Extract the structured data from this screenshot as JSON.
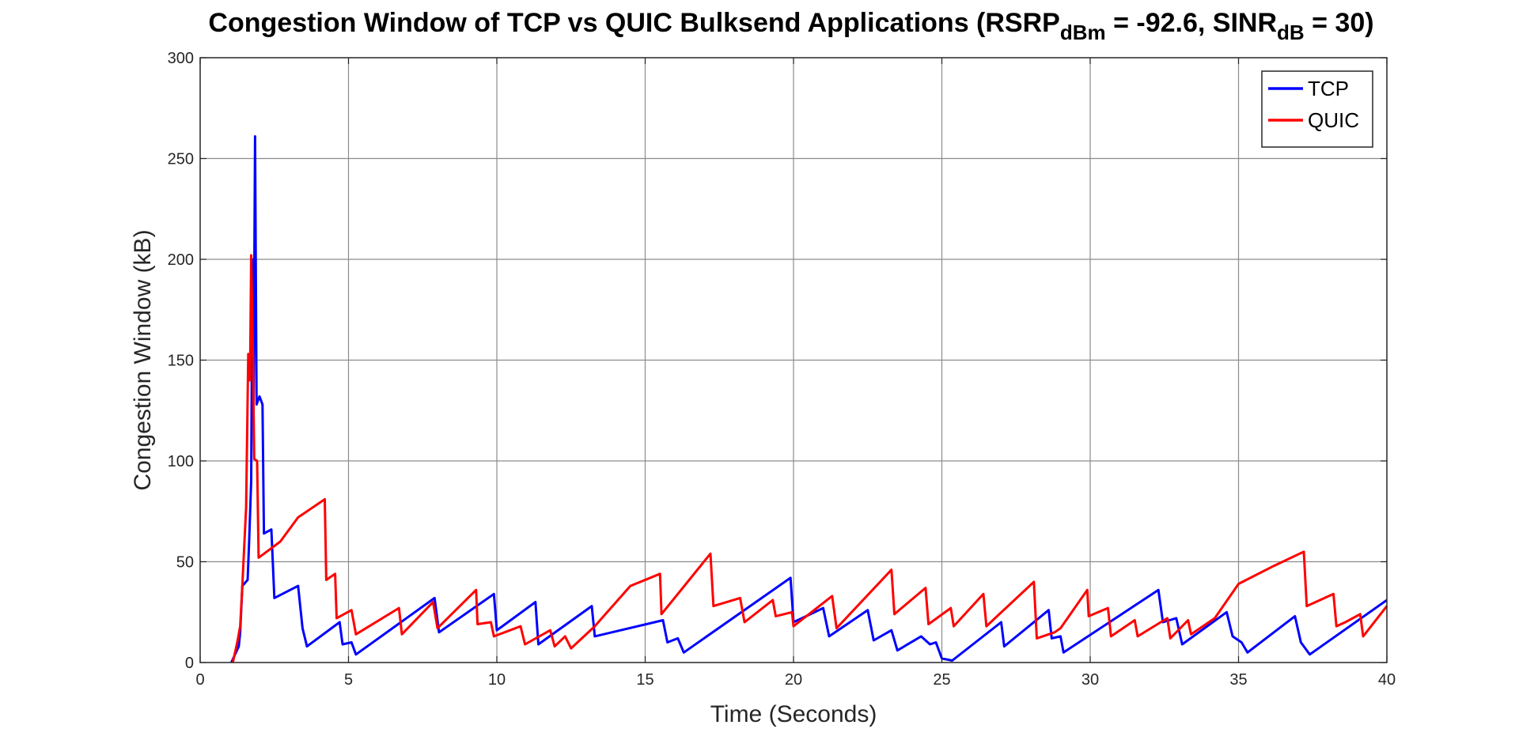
{
  "chart_data": {
    "type": "line",
    "title": {
      "prefix": "Congestion Window of TCP vs QUIC Bulksend Applications (RSRP",
      "sub1": "dBm",
      "middle": " = -92.6, SINR",
      "sub2": "dB",
      "suffix": " = 30)"
    },
    "xlabel": "Time (Seconds)",
    "ylabel": "Congestion Window (kB)",
    "xlim": [
      0,
      40
    ],
    "ylim": [
      0,
      300
    ],
    "xticks": [
      0,
      5,
      10,
      15,
      20,
      25,
      30,
      35,
      40
    ],
    "yticks": [
      0,
      50,
      100,
      150,
      200,
      250,
      300
    ],
    "grid": true,
    "legend_position": "top-right",
    "series": [
      {
        "name": "TCP",
        "color": "#0000ff",
        "points": [
          [
            1.05,
            0
          ],
          [
            1.3,
            8
          ],
          [
            1.35,
            15
          ],
          [
            1.42,
            38
          ],
          [
            1.6,
            41
          ],
          [
            1.65,
            60
          ],
          [
            1.72,
            90
          ],
          [
            1.76,
            200
          ],
          [
            1.8,
            130
          ],
          [
            1.85,
            261
          ],
          [
            1.9,
            128
          ],
          [
            2.0,
            132
          ],
          [
            2.1,
            128
          ],
          [
            2.15,
            64
          ],
          [
            2.4,
            66
          ],
          [
            2.5,
            32
          ],
          [
            3.3,
            38
          ],
          [
            3.45,
            17
          ],
          [
            3.6,
            8
          ],
          [
            4.7,
            20
          ],
          [
            4.8,
            9
          ],
          [
            5.1,
            10
          ],
          [
            5.25,
            4
          ],
          [
            7.9,
            32
          ],
          [
            8.05,
            15
          ],
          [
            9.9,
            34
          ],
          [
            10.0,
            16
          ],
          [
            11.3,
            30
          ],
          [
            11.4,
            9
          ],
          [
            13.2,
            28
          ],
          [
            13.3,
            13
          ],
          [
            15.6,
            21
          ],
          [
            15.75,
            10
          ],
          [
            16.1,
            12
          ],
          [
            16.3,
            5
          ],
          [
            19.9,
            42
          ],
          [
            20.0,
            20
          ],
          [
            21.0,
            27
          ],
          [
            21.2,
            13
          ],
          [
            22.5,
            26
          ],
          [
            22.7,
            11
          ],
          [
            23.3,
            16
          ],
          [
            23.5,
            6
          ],
          [
            24.3,
            13
          ],
          [
            24.6,
            9
          ],
          [
            24.8,
            10
          ],
          [
            25.0,
            2
          ],
          [
            25.35,
            1
          ],
          [
            27.0,
            20
          ],
          [
            27.1,
            8
          ],
          [
            28.6,
            26
          ],
          [
            28.7,
            12
          ],
          [
            29.0,
            13
          ],
          [
            29.1,
            5
          ],
          [
            32.3,
            36
          ],
          [
            32.45,
            20
          ],
          [
            32.9,
            22
          ],
          [
            33.1,
            9
          ],
          [
            34.6,
            25
          ],
          [
            34.8,
            13
          ],
          [
            35.1,
            10
          ],
          [
            35.3,
            5
          ],
          [
            36.9,
            23
          ],
          [
            37.1,
            10
          ],
          [
            37.4,
            4
          ],
          [
            40.0,
            31
          ]
        ]
      },
      {
        "name": "QUIC",
        "color": "#ff0000",
        "points": [
          [
            1.1,
            0
          ],
          [
            1.25,
            10
          ],
          [
            1.35,
            18
          ],
          [
            1.42,
            38
          ],
          [
            1.55,
            77
          ],
          [
            1.62,
            153
          ],
          [
            1.68,
            140
          ],
          [
            1.72,
            202
          ],
          [
            1.78,
            150
          ],
          [
            1.82,
            101
          ],
          [
            1.92,
            100
          ],
          [
            1.97,
            52
          ],
          [
            2.7,
            60
          ],
          [
            3.3,
            72
          ],
          [
            4.2,
            81
          ],
          [
            4.25,
            41
          ],
          [
            4.55,
            44
          ],
          [
            4.6,
            22
          ],
          [
            5.1,
            26
          ],
          [
            5.25,
            14
          ],
          [
            6.7,
            27
          ],
          [
            6.8,
            14
          ],
          [
            7.85,
            30
          ],
          [
            8.0,
            17
          ],
          [
            9.3,
            36
          ],
          [
            9.35,
            19
          ],
          [
            9.8,
            20
          ],
          [
            9.9,
            13
          ],
          [
            10.8,
            18
          ],
          [
            10.95,
            9
          ],
          [
            11.8,
            16
          ],
          [
            11.95,
            8
          ],
          [
            12.3,
            13
          ],
          [
            12.5,
            7
          ],
          [
            13.3,
            18
          ],
          [
            14.5,
            38
          ],
          [
            15.5,
            44
          ],
          [
            15.55,
            24
          ],
          [
            17.2,
            54
          ],
          [
            17.3,
            28
          ],
          [
            18.2,
            32
          ],
          [
            18.35,
            20
          ],
          [
            19.3,
            31
          ],
          [
            19.4,
            23
          ],
          [
            19.95,
            25
          ],
          [
            20.0,
            18
          ],
          [
            21.3,
            33
          ],
          [
            21.45,
            17
          ],
          [
            23.3,
            46
          ],
          [
            23.4,
            24
          ],
          [
            24.45,
            37
          ],
          [
            24.55,
            19
          ],
          [
            25.3,
            27
          ],
          [
            25.4,
            18
          ],
          [
            26.4,
            34
          ],
          [
            26.5,
            18
          ],
          [
            28.1,
            40
          ],
          [
            28.2,
            12
          ],
          [
            28.8,
            15
          ],
          [
            29.0,
            17
          ],
          [
            29.9,
            36
          ],
          [
            29.95,
            23
          ],
          [
            30.6,
            27
          ],
          [
            30.7,
            13
          ],
          [
            31.5,
            21
          ],
          [
            31.6,
            13
          ],
          [
            32.6,
            22
          ],
          [
            32.7,
            12
          ],
          [
            33.3,
            21
          ],
          [
            33.4,
            14
          ],
          [
            34.2,
            22
          ],
          [
            35.0,
            39
          ],
          [
            36.2,
            48
          ],
          [
            37.2,
            55
          ],
          [
            37.3,
            28
          ],
          [
            38.2,
            34
          ],
          [
            38.3,
            18
          ],
          [
            38.6,
            20
          ],
          [
            39.1,
            24
          ],
          [
            39.2,
            13
          ],
          [
            40.0,
            28
          ]
        ]
      }
    ]
  }
}
